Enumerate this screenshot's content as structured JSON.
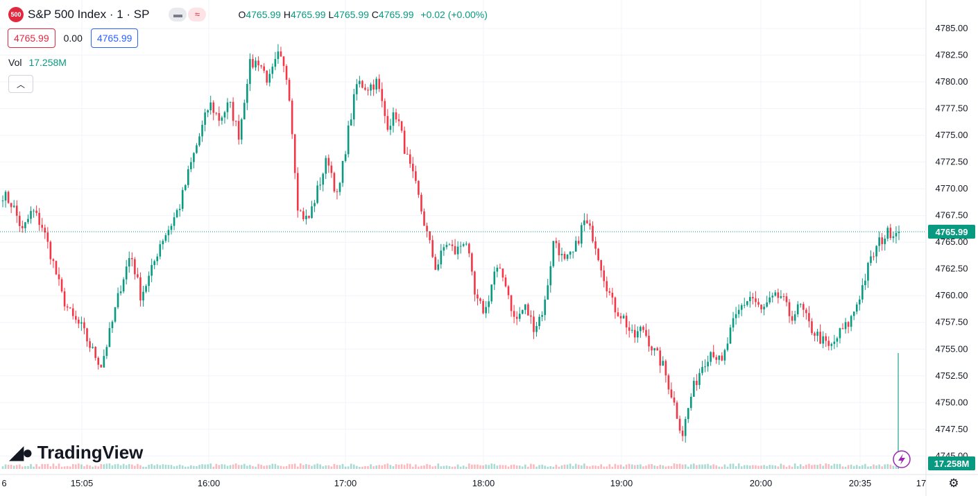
{
  "header": {
    "symbol_badge": "500",
    "title": "S&P 500 Index · 1 · SP",
    "toggle_left_icon": "minus-icon",
    "toggle_right_icon": "approx-icon",
    "ohlc": {
      "o_label": "O",
      "o": "4765.99",
      "h_label": "H",
      "h": "4765.99",
      "l_label": "L",
      "l": "4765.99",
      "c_label": "C",
      "c": "4765.99",
      "change": "+0.02 (+0.00%)"
    },
    "sell_price": "4765.99",
    "spread": "0.00",
    "buy_price": "4765.99"
  },
  "volume": {
    "label": "Vol",
    "value": "17.258M"
  },
  "logo_text": "TradingView",
  "colors": {
    "up": "#089981",
    "down": "#f23645",
    "grid": "#f0f3fa",
    "price_line": "#089981"
  },
  "chart_data": {
    "type": "candlestick",
    "title": "S&P 500 Index · 1 · SP",
    "ylim": [
      4744.5,
      4786.5
    ],
    "y_ticks": [
      4785.0,
      4782.5,
      4780.0,
      4777.5,
      4775.0,
      4772.5,
      4770.0,
      4767.5,
      4765.0,
      4762.5,
      4760.0,
      4757.5,
      4755.0,
      4752.5,
      4750.0,
      4747.5,
      4745.0
    ],
    "y_tick_labels": [
      "4785.00",
      "4782.50",
      "4780.00",
      "4777.50",
      "4775.00",
      "4772.50",
      "4770.00",
      "4767.50",
      "4765.00",
      "4762.50",
      "4760.00",
      "4757.50",
      "4755.00",
      "4752.50",
      "4750.00",
      "4747.50",
      "4745.00"
    ],
    "x_ticks": [
      "6",
      "15:05",
      "16:00",
      "17:00",
      "18:00",
      "19:00",
      "20:00",
      "20:35",
      "17"
    ],
    "current_price": 4765.99,
    "current_price_label": "4765.99",
    "current_volume_label": "17.258M",
    "close_path": [
      4769.5,
      4768.5,
      4766.0,
      4768.0,
      4766.5,
      4763.5,
      4760.0,
      4758.0,
      4757.0,
      4755.0,
      4753.5,
      4757.0,
      4761.0,
      4764.0,
      4760.0,
      4762.0,
      4765.0,
      4766.5,
      4768.5,
      4772.0,
      4775.0,
      4778.0,
      4776.5,
      4778.0,
      4775.0,
      4781.5,
      4782.0,
      4780.0,
      4782.5,
      4780.0,
      4768.0,
      4767.0,
      4770.0,
      4773.0,
      4769.0,
      4775.0,
      4780.0,
      4779.5,
      4780.0,
      4776.0,
      4777.0,
      4773.0,
      4770.0,
      4766.0,
      4762.5,
      4765.0,
      4764.0,
      4765.5,
      4759.5,
      4758.5,
      4762.5,
      4761.5,
      4757.5,
      4759.0,
      4757.0,
      4759.0,
      4765.5,
      4763.0,
      4764.0,
      4767.0,
      4765.5,
      4762.0,
      4759.0,
      4758.0,
      4756.0,
      4757.0,
      4755.0,
      4753.5,
      4750.5,
      4747.0,
      4751.0,
      4753.5,
      4755.0,
      4753.5,
      4757.0,
      4759.0,
      4760.0,
      4758.5,
      4759.5,
      4760.0,
      4758.0,
      4759.0,
      4757.0,
      4756.0,
      4755.0,
      4756.5,
      4757.5,
      4760.0,
      4763.0,
      4765.0,
      4765.99,
      4765.99
    ],
    "volume_last": 17.258,
    "volume_unit": "M"
  }
}
